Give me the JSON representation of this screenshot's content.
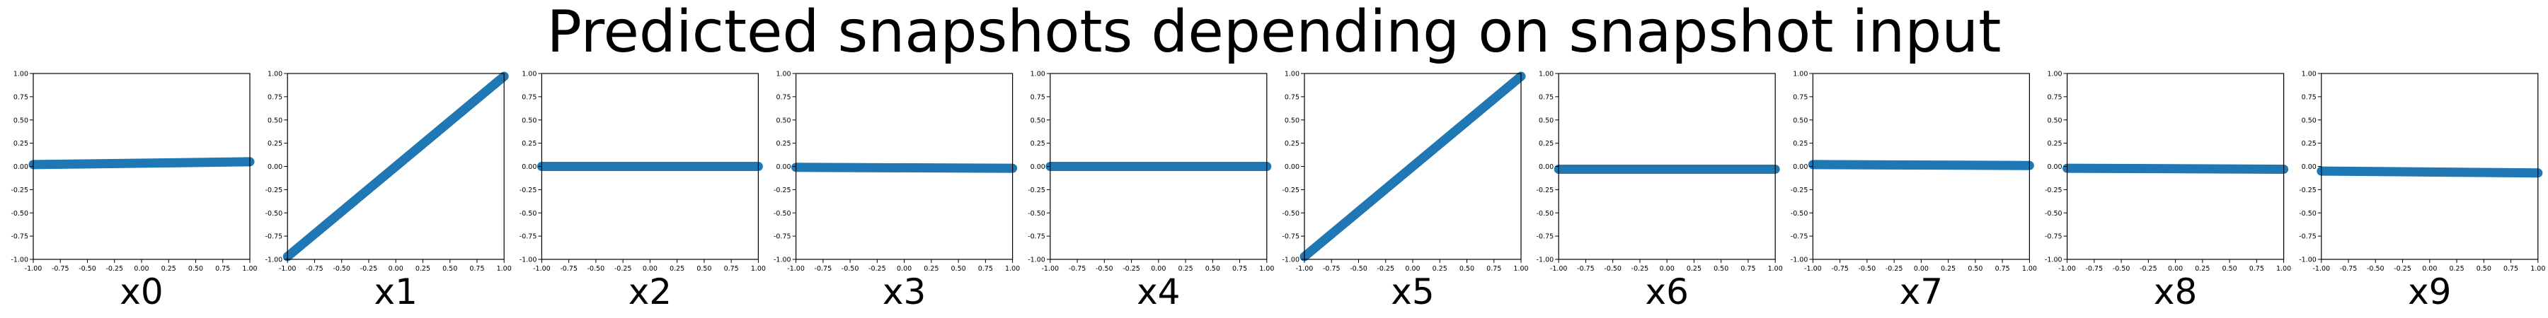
{
  "title": "Predicted snapshots depending on snapshot input",
  "chart_data": [
    {
      "type": "scatter",
      "title": "",
      "xlabel": "x0",
      "ylabel": "",
      "xlim": [
        -1,
        1
      ],
      "ylim": [
        -1,
        1
      ],
      "xticks": [
        "-1.00",
        "-0.75",
        "-0.50",
        "-0.25",
        "0.00",
        "0.25",
        "0.50",
        "0.75",
        "1.00"
      ],
      "yticks": [
        "-1.00",
        "-0.75",
        "-0.50",
        "-0.25",
        "0.00",
        "0.25",
        "0.50",
        "0.75",
        "1.00"
      ],
      "series": [
        {
          "x": [
            -1.0,
            1.0
          ],
          "y": [
            0.02,
            0.05
          ],
          "color": "#1f77b4",
          "marker": "dense line of points"
        }
      ]
    },
    {
      "type": "scatter",
      "title": "",
      "xlabel": "x1",
      "ylabel": "",
      "xlim": [
        -1,
        1
      ],
      "ylim": [
        -1,
        1
      ],
      "xticks": [
        "-1.00",
        "-0.75",
        "-0.50",
        "-0.25",
        "0.00",
        "0.25",
        "0.50",
        "0.75",
        "1.00"
      ],
      "yticks": [
        "-1.00",
        "-0.75",
        "-0.50",
        "-0.25",
        "0.00",
        "0.25",
        "0.50",
        "0.75",
        "1.00"
      ],
      "series": [
        {
          "x": [
            -1.0,
            1.0
          ],
          "y": [
            -0.97,
            0.97
          ],
          "color": "#1f77b4",
          "marker": "dense line of points"
        }
      ]
    },
    {
      "type": "scatter",
      "title": "",
      "xlabel": "x2",
      "ylabel": "",
      "xlim": [
        -1,
        1
      ],
      "ylim": [
        -1,
        1
      ],
      "xticks": [
        "-1.00",
        "-0.75",
        "-0.50",
        "-0.25",
        "0.00",
        "0.25",
        "0.50",
        "0.75",
        "1.00"
      ],
      "yticks": [
        "-1.00",
        "-0.75",
        "-0.50",
        "-0.25",
        "0.00",
        "0.25",
        "0.50",
        "0.75",
        "1.00"
      ],
      "series": [
        {
          "x": [
            -1.0,
            1.0
          ],
          "y": [
            0.0,
            0.0
          ],
          "color": "#1f77b4",
          "marker": "dense line of points"
        }
      ]
    },
    {
      "type": "scatter",
      "title": "",
      "xlabel": "x3",
      "ylabel": "",
      "xlim": [
        -1,
        1
      ],
      "ylim": [
        -1,
        1
      ],
      "xticks": [
        "-1.00",
        "-0.75",
        "-0.50",
        "-0.25",
        "0.00",
        "0.25",
        "0.50",
        "0.75",
        "1.00"
      ],
      "yticks": [
        "-1.00",
        "-0.75",
        "-0.50",
        "-0.25",
        "0.00",
        "0.25",
        "0.50",
        "0.75",
        "1.00"
      ],
      "series": [
        {
          "x": [
            -1.0,
            1.0
          ],
          "y": [
            -0.01,
            -0.02
          ],
          "color": "#1f77b4",
          "marker": "dense line of points"
        }
      ]
    },
    {
      "type": "scatter",
      "title": "",
      "xlabel": "x4",
      "ylabel": "",
      "xlim": [
        -1,
        1
      ],
      "ylim": [
        -1,
        1
      ],
      "xticks": [
        "-1.00",
        "-0.75",
        "-0.50",
        "-0.25",
        "0.00",
        "0.25",
        "0.50",
        "0.75",
        "1.00"
      ],
      "yticks": [
        "-1.00",
        "-0.75",
        "-0.50",
        "-0.25",
        "0.00",
        "0.25",
        "0.50",
        "0.75",
        "1.00"
      ],
      "series": [
        {
          "x": [
            -1.0,
            1.0
          ],
          "y": [
            0.0,
            0.0
          ],
          "color": "#1f77b4",
          "marker": "dense line of points"
        }
      ]
    },
    {
      "type": "scatter",
      "title": "",
      "xlabel": "x5",
      "ylabel": "",
      "xlim": [
        -1,
        1
      ],
      "ylim": [
        -1,
        1
      ],
      "xticks": [
        "-1.00",
        "-0.75",
        "-0.50",
        "-0.25",
        "0.00",
        "0.25",
        "0.50",
        "0.75",
        "1.00"
      ],
      "yticks": [
        "-1.00",
        "-0.75",
        "-0.50",
        "-0.25",
        "0.00",
        "0.25",
        "0.50",
        "0.75",
        "1.00"
      ],
      "series": [
        {
          "x": [
            -1.0,
            1.0
          ],
          "y": [
            -0.97,
            0.97
          ],
          "color": "#1f77b4",
          "marker": "dense line of points"
        }
      ]
    },
    {
      "type": "scatter",
      "title": "",
      "xlabel": "x6",
      "ylabel": "",
      "xlim": [
        -1,
        1
      ],
      "ylim": [
        -1,
        1
      ],
      "xticks": [
        "-1.00",
        "-0.75",
        "-0.50",
        "-0.25",
        "0.00",
        "0.25",
        "0.50",
        "0.75",
        "1.00"
      ],
      "yticks": [
        "-1.00",
        "-0.75",
        "-0.50",
        "-0.25",
        "0.00",
        "0.25",
        "0.50",
        "0.75",
        "1.00"
      ],
      "series": [
        {
          "x": [
            -1.0,
            1.0
          ],
          "y": [
            -0.03,
            -0.03
          ],
          "color": "#1f77b4",
          "marker": "dense line of points"
        }
      ]
    },
    {
      "type": "scatter",
      "title": "",
      "xlabel": "x7",
      "ylabel": "",
      "xlim": [
        -1,
        1
      ],
      "ylim": [
        -1,
        1
      ],
      "xticks": [
        "-1.00",
        "-0.75",
        "-0.50",
        "-0.25",
        "0.00",
        "0.25",
        "0.50",
        "0.75",
        "1.00"
      ],
      "yticks": [
        "-1.00",
        "-0.75",
        "-0.50",
        "-0.25",
        "0.00",
        "0.25",
        "0.50",
        "0.75",
        "1.00"
      ],
      "series": [
        {
          "x": [
            -1.0,
            1.0
          ],
          "y": [
            0.02,
            0.01
          ],
          "color": "#1f77b4",
          "marker": "dense line of points"
        }
      ]
    },
    {
      "type": "scatter",
      "title": "",
      "xlabel": "x8",
      "ylabel": "",
      "xlim": [
        -1,
        1
      ],
      "ylim": [
        -1,
        1
      ],
      "xticks": [
        "-1.00",
        "-0.75",
        "-0.50",
        "-0.25",
        "0.00",
        "0.25",
        "0.50",
        "0.75",
        "1.00"
      ],
      "yticks": [
        "-1.00",
        "-0.75",
        "-0.50",
        "-0.25",
        "0.00",
        "0.25",
        "0.50",
        "0.75",
        "1.00"
      ],
      "series": [
        {
          "x": [
            -1.0,
            1.0
          ],
          "y": [
            -0.02,
            -0.03
          ],
          "color": "#1f77b4",
          "marker": "dense line of points"
        }
      ]
    },
    {
      "type": "scatter",
      "title": "",
      "xlabel": "x9",
      "ylabel": "",
      "xlim": [
        -1,
        1
      ],
      "ylim": [
        -1,
        1
      ],
      "xticks": [
        "-1.00",
        "-0.75",
        "-0.50",
        "-0.25",
        "0.00",
        "0.25",
        "0.50",
        "0.75",
        "1.00"
      ],
      "yticks": [
        "-1.00",
        "-0.75",
        "-0.50",
        "-0.25",
        "0.00",
        "0.25",
        "0.50",
        "0.75",
        "1.00"
      ],
      "series": [
        {
          "x": [
            -1.0,
            1.0
          ],
          "y": [
            -0.05,
            -0.07
          ],
          "color": "#1f77b4",
          "marker": "dense line of points"
        }
      ]
    }
  ]
}
